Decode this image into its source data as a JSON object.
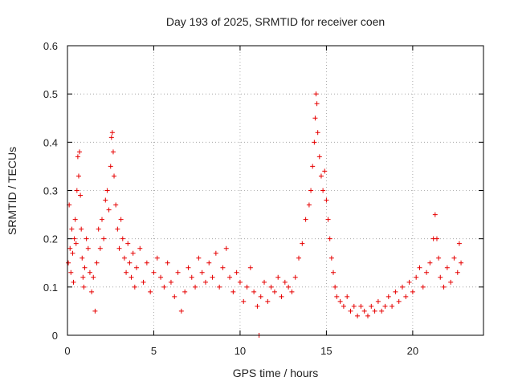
{
  "chart_data": {
    "type": "scatter",
    "title": "Day 193 of 2025, SRMTID for receiver coen",
    "xlabel": "GPS time / hours",
    "ylabel": "SRMTID / TECUs",
    "xlim": [
      0,
      24.1
    ],
    "ylim": [
      0,
      0.6
    ],
    "xticks": [
      0,
      5,
      10,
      15,
      20
    ],
    "yticks": [
      0,
      0.1,
      0.2,
      0.3,
      0.4,
      0.5,
      0.6
    ],
    "xtick_labels": [
      "0",
      "5",
      "10",
      "15",
      "20"
    ],
    "ytick_labels": [
      "0",
      "0.1",
      "0.2",
      "0.3",
      "0.4",
      "0.5",
      "0.6"
    ],
    "grid": true,
    "marker": "+",
    "color": "#e60000",
    "series": [
      {
        "name": "SRMTID",
        "points": [
          [
            0.05,
            0.15
          ],
          [
            0.1,
            0.27
          ],
          [
            0.15,
            0.18
          ],
          [
            0.2,
            0.13
          ],
          [
            0.25,
            0.22
          ],
          [
            0.3,
            0.17
          ],
          [
            0.35,
            0.11
          ],
          [
            0.4,
            0.2
          ],
          [
            0.45,
            0.24
          ],
          [
            0.5,
            0.19
          ],
          [
            0.55,
            0.3
          ],
          [
            0.6,
            0.37
          ],
          [
            0.65,
            0.33
          ],
          [
            0.7,
            0.38
          ],
          [
            0.75,
            0.29
          ],
          [
            0.8,
            0.22
          ],
          [
            0.85,
            0.16
          ],
          [
            0.9,
            0.12
          ],
          [
            0.95,
            0.1
          ],
          [
            1.0,
            0.14
          ],
          [
            1.1,
            0.2
          ],
          [
            1.2,
            0.18
          ],
          [
            1.3,
            0.13
          ],
          [
            1.4,
            0.09
          ],
          [
            1.5,
            0.12
          ],
          [
            1.6,
            0.05
          ],
          [
            1.7,
            0.15
          ],
          [
            1.8,
            0.22
          ],
          [
            1.9,
            0.18
          ],
          [
            2.0,
            0.24
          ],
          [
            2.1,
            0.2
          ],
          [
            2.2,
            0.28
          ],
          [
            2.3,
            0.3
          ],
          [
            2.4,
            0.26
          ],
          [
            2.5,
            0.35
          ],
          [
            2.55,
            0.41
          ],
          [
            2.6,
            0.42
          ],
          [
            2.65,
            0.38
          ],
          [
            2.7,
            0.33
          ],
          [
            2.8,
            0.27
          ],
          [
            2.9,
            0.22
          ],
          [
            3.0,
            0.18
          ],
          [
            3.1,
            0.24
          ],
          [
            3.2,
            0.2
          ],
          [
            3.3,
            0.16
          ],
          [
            3.4,
            0.13
          ],
          [
            3.5,
            0.19
          ],
          [
            3.6,
            0.15
          ],
          [
            3.7,
            0.12
          ],
          [
            3.8,
            0.17
          ],
          [
            3.9,
            0.1
          ],
          [
            4.0,
            0.14
          ],
          [
            4.2,
            0.18
          ],
          [
            4.4,
            0.11
          ],
          [
            4.6,
            0.15
          ],
          [
            4.8,
            0.09
          ],
          [
            5.0,
            0.13
          ],
          [
            5.2,
            0.16
          ],
          [
            5.4,
            0.12
          ],
          [
            5.6,
            0.1
          ],
          [
            5.8,
            0.15
          ],
          [
            6.0,
            0.11
          ],
          [
            6.2,
            0.08
          ],
          [
            6.4,
            0.13
          ],
          [
            6.6,
            0.05
          ],
          [
            6.8,
            0.09
          ],
          [
            7.0,
            0.14
          ],
          [
            7.2,
            0.12
          ],
          [
            7.4,
            0.1
          ],
          [
            7.6,
            0.16
          ],
          [
            7.8,
            0.13
          ],
          [
            8.0,
            0.11
          ],
          [
            8.2,
            0.15
          ],
          [
            8.4,
            0.12
          ],
          [
            8.6,
            0.17
          ],
          [
            8.8,
            0.1
          ],
          [
            9.0,
            0.14
          ],
          [
            9.2,
            0.18
          ],
          [
            9.4,
            0.12
          ],
          [
            9.6,
            0.09
          ],
          [
            9.8,
            0.13
          ],
          [
            10.0,
            0.11
          ],
          [
            10.2,
            0.07
          ],
          [
            10.4,
            0.1
          ],
          [
            10.6,
            0.14
          ],
          [
            10.8,
            0.09
          ],
          [
            11.0,
            0.06
          ],
          [
            11.1,
            0.0
          ],
          [
            11.2,
            0.08
          ],
          [
            11.4,
            0.11
          ],
          [
            11.6,
            0.07
          ],
          [
            11.8,
            0.1
          ],
          [
            12.0,
            0.09
          ],
          [
            12.2,
            0.12
          ],
          [
            12.4,
            0.08
          ],
          [
            12.6,
            0.11
          ],
          [
            12.8,
            0.1
          ],
          [
            13.0,
            0.09
          ],
          [
            13.2,
            0.12
          ],
          [
            13.4,
            0.16
          ],
          [
            13.6,
            0.19
          ],
          [
            13.8,
            0.24
          ],
          [
            14.0,
            0.27
          ],
          [
            14.1,
            0.3
          ],
          [
            14.2,
            0.35
          ],
          [
            14.3,
            0.4
          ],
          [
            14.35,
            0.45
          ],
          [
            14.4,
            0.5
          ],
          [
            14.45,
            0.48
          ],
          [
            14.5,
            0.42
          ],
          [
            14.6,
            0.37
          ],
          [
            14.7,
            0.33
          ],
          [
            14.8,
            0.3
          ],
          [
            14.9,
            0.34
          ],
          [
            15.0,
            0.28
          ],
          [
            15.1,
            0.24
          ],
          [
            15.2,
            0.2
          ],
          [
            15.3,
            0.16
          ],
          [
            15.4,
            0.13
          ],
          [
            15.5,
            0.1
          ],
          [
            15.6,
            0.08
          ],
          [
            15.8,
            0.07
          ],
          [
            16.0,
            0.06
          ],
          [
            16.2,
            0.08
          ],
          [
            16.4,
            0.05
          ],
          [
            16.6,
            0.06
          ],
          [
            16.8,
            0.04
          ],
          [
            17.0,
            0.06
          ],
          [
            17.2,
            0.05
          ],
          [
            17.4,
            0.04
          ],
          [
            17.6,
            0.06
          ],
          [
            17.8,
            0.05
          ],
          [
            18.0,
            0.07
          ],
          [
            18.2,
            0.05
          ],
          [
            18.4,
            0.06
          ],
          [
            18.6,
            0.08
          ],
          [
            18.8,
            0.06
          ],
          [
            19.0,
            0.09
          ],
          [
            19.2,
            0.07
          ],
          [
            19.4,
            0.1
          ],
          [
            19.6,
            0.08
          ],
          [
            19.8,
            0.11
          ],
          [
            20.0,
            0.09
          ],
          [
            20.2,
            0.12
          ],
          [
            20.4,
            0.14
          ],
          [
            20.6,
            0.1
          ],
          [
            20.8,
            0.13
          ],
          [
            21.0,
            0.15
          ],
          [
            21.2,
            0.2
          ],
          [
            21.3,
            0.25
          ],
          [
            21.4,
            0.2
          ],
          [
            21.5,
            0.16
          ],
          [
            21.6,
            0.12
          ],
          [
            21.8,
            0.1
          ],
          [
            22.0,
            0.14
          ],
          [
            22.2,
            0.11
          ],
          [
            22.4,
            0.16
          ],
          [
            22.6,
            0.13
          ],
          [
            22.7,
            0.19
          ],
          [
            22.8,
            0.15
          ]
        ]
      }
    ]
  }
}
